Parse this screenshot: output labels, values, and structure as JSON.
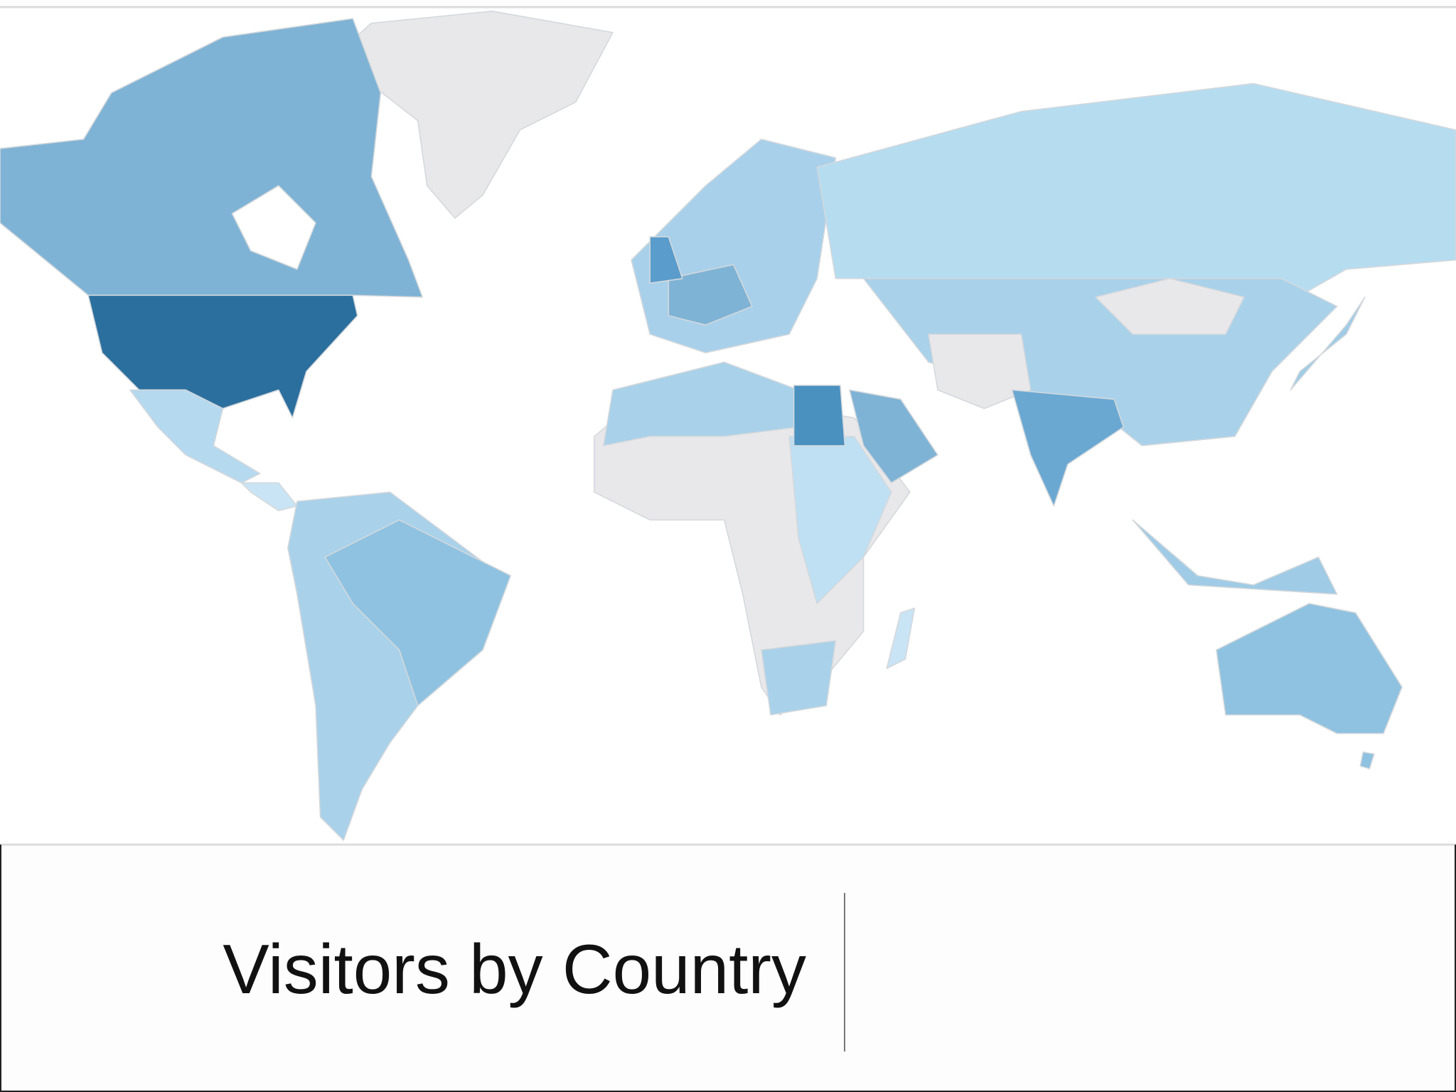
{
  "title": "Visitors by Country"
}
